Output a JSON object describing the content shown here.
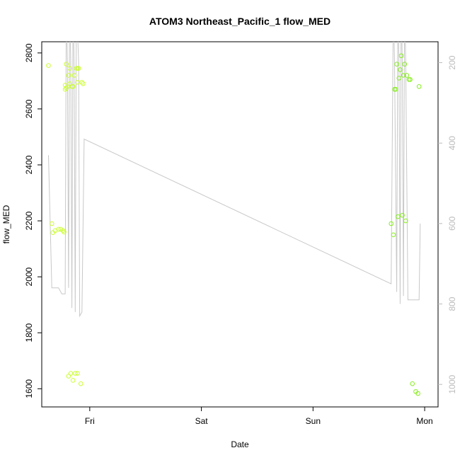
{
  "chart_data": {
    "type": "scatter",
    "title": "ATOM3 Northeast_Pacific_1 flow_MED",
    "xlabel": "Date",
    "ylabel": "flow_MED",
    "x_tick_labels": [
      "Fri",
      "Sat",
      "Sun",
      "Mon"
    ],
    "x_tick_positions_days": [
      1,
      2,
      3,
      4
    ],
    "x_range_days": [
      0.57,
      4.12
    ],
    "y_ticks_left": [
      1600,
      1800,
      2000,
      2200,
      2400,
      2600,
      2800
    ],
    "ylim_left": [
      1535,
      2840
    ],
    "y_ticks_right": [
      200,
      400,
      600,
      800,
      1000
    ],
    "ylim_right": [
      1056,
      148
    ],
    "grid": false,
    "colors": {
      "points_early": "#ccff33",
      "points_late": "#88ee22",
      "line": "#c8c8c8",
      "right_axis": "#bbbbbb"
    },
    "series": [
      {
        "kind": "points",
        "points": [
          [
            0.63,
            2755
          ],
          [
            0.66,
            2190
          ],
          [
            0.67,
            2158
          ],
          [
            0.69,
            2165
          ],
          [
            0.72,
            2170
          ],
          [
            0.74,
            2170
          ],
          [
            0.76,
            2165
          ],
          [
            0.77,
            2160
          ],
          [
            0.78,
            2685
          ],
          [
            0.78,
            2670
          ],
          [
            0.79,
            2675
          ],
          [
            0.79,
            2760
          ],
          [
            0.81,
            2720
          ],
          [
            0.82,
            2745
          ],
          [
            0.82,
            2690
          ],
          [
            0.84,
            2680
          ],
          [
            0.85,
            2680
          ],
          [
            0.86,
            2720
          ],
          [
            0.88,
            2745
          ],
          [
            0.89,
            2745
          ],
          [
            0.89,
            2695
          ],
          [
            0.9,
            2745
          ],
          [
            0.93,
            2695
          ],
          [
            0.94,
            2690
          ],
          [
            0.81,
            1645
          ],
          [
            0.83,
            1655
          ],
          [
            0.85,
            1630
          ],
          [
            0.87,
            1655
          ],
          [
            0.89,
            1655
          ],
          [
            0.92,
            1618
          ],
          [
            3.7,
            2190
          ],
          [
            3.72,
            2150
          ],
          [
            3.73,
            2670
          ],
          [
            3.74,
            2670
          ],
          [
            3.75,
            2760
          ],
          [
            3.76,
            2215
          ],
          [
            3.77,
            2710
          ],
          [
            3.78,
            2740
          ],
          [
            3.79,
            2790
          ],
          [
            3.8,
            2220
          ],
          [
            3.81,
            2720
          ],
          [
            3.82,
            2760
          ],
          [
            3.83,
            2200
          ],
          [
            3.84,
            2720
          ],
          [
            3.86,
            2705
          ],
          [
            3.87,
            2705
          ],
          [
            3.89,
            1618
          ],
          [
            3.92,
            1590
          ],
          [
            3.94,
            1583
          ],
          [
            3.95,
            2680
          ]
        ]
      },
      {
        "kind": "line",
        "axis": "right",
        "points": [
          [
            0.63,
            430
          ],
          [
            0.66,
            760
          ],
          [
            0.72,
            760
          ],
          [
            0.75,
            775
          ],
          [
            0.78,
            775
          ],
          [
            0.79,
            40
          ],
          [
            0.8,
            200
          ],
          [
            0.81,
            760
          ],
          [
            0.82,
            40
          ],
          [
            0.83,
            200
          ],
          [
            0.84,
            810
          ],
          [
            0.85,
            40
          ],
          [
            0.86,
            200
          ],
          [
            0.87,
            820
          ],
          [
            0.88,
            40
          ],
          [
            0.9,
            200
          ],
          [
            0.91,
            830
          ],
          [
            0.93,
            820
          ],
          [
            0.95,
            390
          ],
          [
            3.7,
            750
          ],
          [
            3.72,
            40
          ],
          [
            3.73,
            200
          ],
          [
            3.75,
            770
          ],
          [
            3.76,
            40
          ],
          [
            3.77,
            200
          ],
          [
            3.78,
            800
          ],
          [
            3.79,
            40
          ],
          [
            3.8,
            200
          ],
          [
            3.81,
            780
          ],
          [
            3.82,
            40
          ],
          [
            3.83,
            200
          ],
          [
            3.85,
            790
          ],
          [
            3.86,
            790
          ],
          [
            3.88,
            790
          ],
          [
            3.91,
            790
          ],
          [
            3.95,
            790
          ],
          [
            3.96,
            600
          ]
        ]
      }
    ]
  }
}
